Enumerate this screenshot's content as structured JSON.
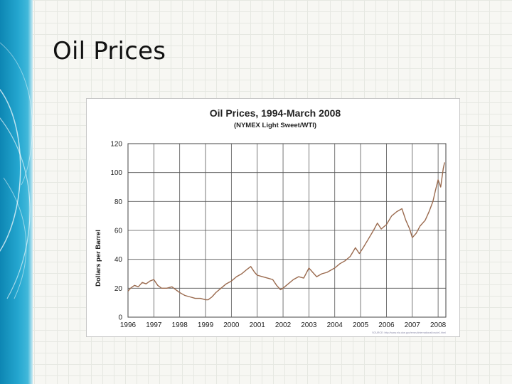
{
  "slide": {
    "title": "Oil Prices"
  },
  "chart_data": {
    "type": "line",
    "title": "Oil Prices, 1994-March 2008",
    "subtitle": "(NYMEX Light Sweet/WTI)",
    "xlabel": "",
    "ylabel": "Dollars per Barrel",
    "xlim": [
      1996,
      2008.3
    ],
    "ylim": [
      0,
      120
    ],
    "x_ticks": [
      "1996",
      "1997",
      "1998",
      "1999",
      "2000",
      "2001",
      "2002",
      "2003",
      "2004",
      "2005",
      "2006",
      "2007",
      "2008"
    ],
    "y_ticks": [
      "0",
      "20",
      "40",
      "60",
      "80",
      "100",
      "120"
    ],
    "grid": true,
    "line_color": "#9a6a4e",
    "source_note": "SOURCE: http://www.eia.doe.gov/emeu/international/crude1.html",
    "series": [
      {
        "x": [
          1996.0,
          1996.1,
          1996.25,
          1996.4,
          1996.55,
          1996.7,
          1996.85,
          1997.0,
          1997.15,
          1997.3,
          1997.5,
          1997.7,
          1997.85,
          1998.0,
          1998.2,
          1998.4,
          1998.6,
          1998.8,
          1999.0,
          1999.1,
          1999.25,
          1999.4,
          1999.6,
          1999.8,
          2000.0,
          2000.2,
          2000.4,
          2000.6,
          2000.75,
          2000.9,
          2001.0,
          2001.2,
          2001.4,
          2001.6,
          2001.75,
          2001.9,
          2002.0,
          2002.2,
          2002.4,
          2002.6,
          2002.8,
          2003.0,
          2003.15,
          2003.3,
          2003.5,
          2003.7,
          2003.9,
          2004.0,
          2004.2,
          2004.4,
          2004.6,
          2004.8,
          2004.95,
          2005.1,
          2005.3,
          2005.5,
          2005.65,
          2005.8,
          2006.0,
          2006.2,
          2006.4,
          2006.6,
          2006.75,
          2006.9,
          2007.0,
          2007.15,
          2007.3,
          2007.5,
          2007.65,
          2007.8,
          2007.9,
          2008.0,
          2008.1,
          2008.2,
          2008.25
        ],
        "y": [
          18,
          20,
          22,
          21,
          24,
          23,
          25,
          26,
          22,
          20,
          20,
          21,
          19,
          17,
          15,
          14,
          13,
          13,
          12,
          12,
          14,
          17,
          20,
          23,
          25,
          28,
          30,
          33,
          35,
          31,
          29,
          28,
          27,
          26,
          22,
          19,
          20,
          23,
          26,
          28,
          27,
          34,
          31,
          28,
          30,
          31,
          33,
          34,
          37,
          39,
          42,
          48,
          44,
          48,
          54,
          60,
          65,
          61,
          64,
          70,
          73,
          75,
          67,
          61,
          55,
          58,
          63,
          67,
          73,
          80,
          88,
          95,
          90,
          103,
          107
        ]
      }
    ]
  }
}
